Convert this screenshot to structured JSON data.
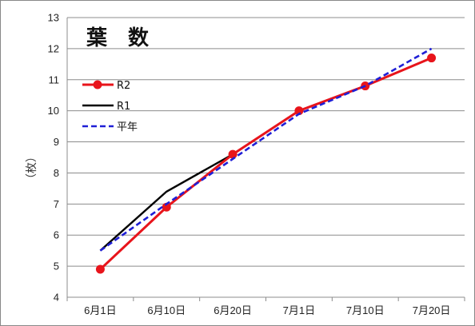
{
  "chart_data": {
    "type": "line",
    "title": "葉　数",
    "xlabel": "",
    "ylabel": "（枚）",
    "categories": [
      "6月1日",
      "6月10日",
      "6月20日",
      "7月1日",
      "7月10日",
      "7月20日"
    ],
    "ylim": [
      4,
      13
    ],
    "yticks": [
      4,
      5,
      6,
      7,
      8,
      9,
      10,
      11,
      12,
      13
    ],
    "grid": true,
    "legend_position": "top-left",
    "series": [
      {
        "name": "R2",
        "values": [
          4.9,
          6.9,
          8.6,
          10.0,
          10.8,
          11.7
        ],
        "color": "#e8141b",
        "style": "solid",
        "markers": true
      },
      {
        "name": "R1",
        "values": [
          5.5,
          7.4,
          8.6,
          10.0,
          10.8,
          11.7
        ],
        "color": "#000000",
        "style": "solid",
        "markers": false
      },
      {
        "name": "平年",
        "values": [
          5.5,
          7.0,
          8.45,
          9.9,
          10.8,
          12.0
        ],
        "color": "#1f1fd6",
        "style": "dashed",
        "markers": false
      }
    ]
  }
}
